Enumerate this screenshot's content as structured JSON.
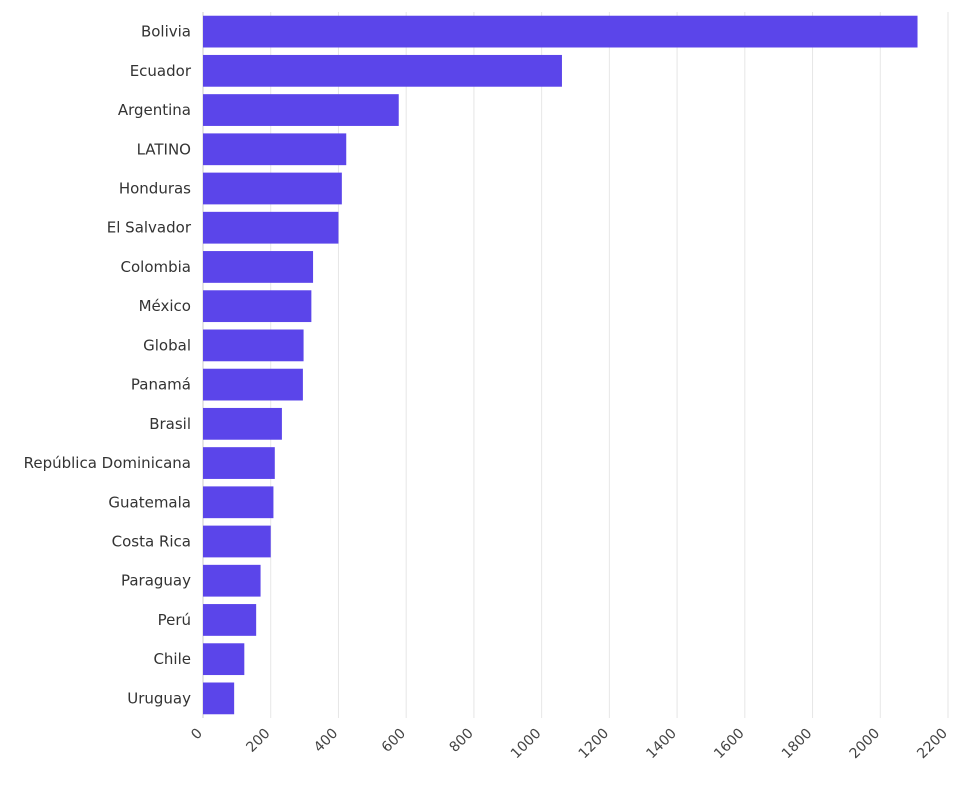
{
  "chart_data": {
    "type": "bar",
    "orientation": "horizontal",
    "title": "",
    "xlabel": "",
    "ylabel": "",
    "grid": true,
    "legend": "none",
    "xlim": [
      0,
      2200
    ],
    "xticks": [
      0,
      200,
      400,
      600,
      800,
      1000,
      1200,
      1400,
      1600,
      1800,
      2000,
      2200
    ],
    "bar_color": "#5b45ea",
    "categories": [
      "Bolivia",
      "Ecuador",
      "Argentina",
      "LATINO",
      "Honduras",
      "El Salvador",
      "Colombia",
      "México",
      "Global",
      "Panamá",
      "Brasil",
      "República Dominicana",
      "Guatemala",
      "Costa Rica",
      "Paraguay",
      "Perú",
      "Chile",
      "Uruguay"
    ],
    "values": [
      2110,
      1060,
      578,
      423,
      410,
      400,
      325,
      320,
      297,
      295,
      233,
      212,
      208,
      200,
      170,
      157,
      122,
      92
    ]
  }
}
